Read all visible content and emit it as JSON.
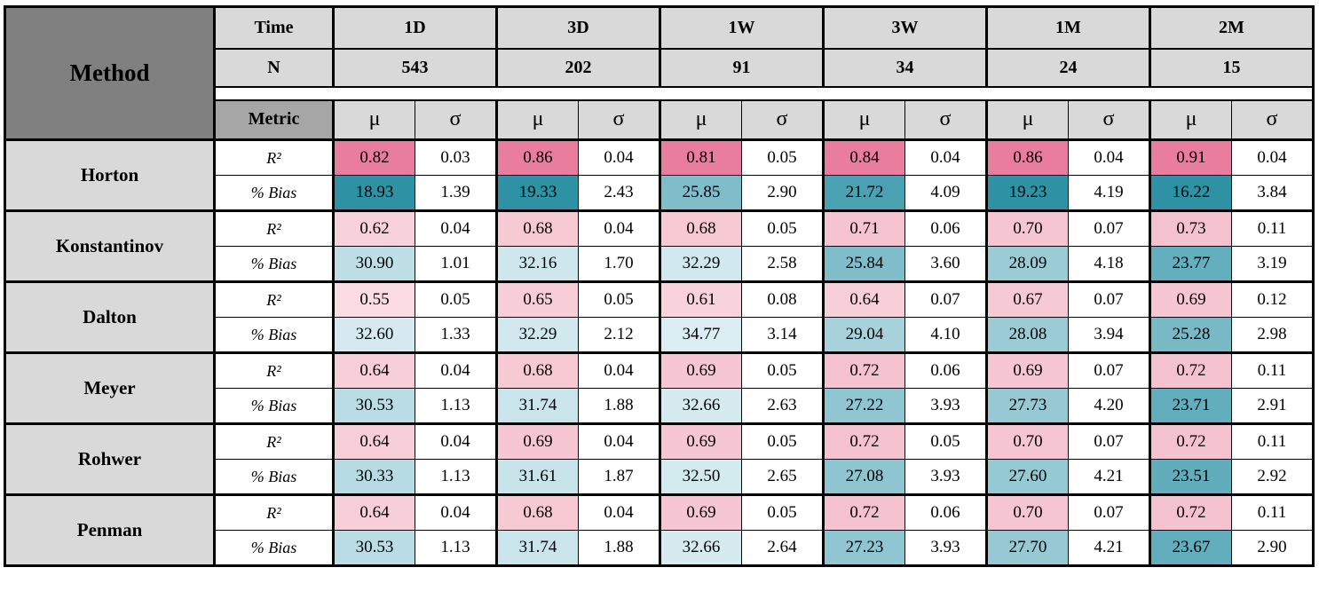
{
  "table": {
    "corner_label": "Method",
    "header": {
      "time_label": "Time",
      "n_label": "N",
      "metric_label": "Metric",
      "mu_label": "μ",
      "sigma_label": "σ",
      "periods": [
        {
          "time": "1D",
          "n": "543"
        },
        {
          "time": "3D",
          "n": "202"
        },
        {
          "time": "1W",
          "n": "91"
        },
        {
          "time": "3W",
          "n": "34"
        },
        {
          "time": "1M",
          "n": "24"
        },
        {
          "time": "2M",
          "n": "15"
        }
      ]
    },
    "metrics": [
      "R²",
      "% Bias"
    ],
    "methods": [
      {
        "name": "Horton",
        "r2": {
          "mu": [
            "0.82",
            "0.86",
            "0.81",
            "0.84",
            "0.86",
            "0.91"
          ],
          "sigma": [
            "0.03",
            "0.04",
            "0.05",
            "0.04",
            "0.04",
            "0.04"
          ]
        },
        "bias": {
          "mu": [
            "18.93",
            "19.33",
            "25.85",
            "21.72",
            "19.23",
            "16.22"
          ],
          "sigma": [
            "1.39",
            "2.43",
            "2.90",
            "4.09",
            "4.19",
            "3.84"
          ]
        }
      },
      {
        "name": "Konstantinov",
        "r2": {
          "mu": [
            "0.62",
            "0.68",
            "0.68",
            "0.71",
            "0.70",
            "0.73"
          ],
          "sigma": [
            "0.04",
            "0.04",
            "0.05",
            "0.06",
            "0.07",
            "0.11"
          ]
        },
        "bias": {
          "mu": [
            "30.90",
            "32.16",
            "32.29",
            "25.84",
            "28.09",
            "23.77"
          ],
          "sigma": [
            "1.01",
            "1.70",
            "2.58",
            "3.60",
            "4.18",
            "3.19"
          ]
        }
      },
      {
        "name": "Dalton",
        "r2": {
          "mu": [
            "0.55",
            "0.65",
            "0.61",
            "0.64",
            "0.67",
            "0.69"
          ],
          "sigma": [
            "0.05",
            "0.05",
            "0.08",
            "0.07",
            "0.07",
            "0.12"
          ]
        },
        "bias": {
          "mu": [
            "32.60",
            "32.29",
            "34.77",
            "29.04",
            "28.08",
            "25.28"
          ],
          "sigma": [
            "1.33",
            "2.12",
            "3.14",
            "4.10",
            "3.94",
            "2.98"
          ]
        }
      },
      {
        "name": "Meyer",
        "r2": {
          "mu": [
            "0.64",
            "0.68",
            "0.69",
            "0.72",
            "0.69",
            "0.72"
          ],
          "sigma": [
            "0.04",
            "0.04",
            "0.05",
            "0.06",
            "0.07",
            "0.11"
          ]
        },
        "bias": {
          "mu": [
            "30.53",
            "31.74",
            "32.66",
            "27.22",
            "27.73",
            "23.71"
          ],
          "sigma": [
            "1.13",
            "1.88",
            "2.63",
            "3.93",
            "4.20",
            "2.91"
          ]
        }
      },
      {
        "name": "Rohwer",
        "r2": {
          "mu": [
            "0.64",
            "0.69",
            "0.69",
            "0.72",
            "0.70",
            "0.72"
          ],
          "sigma": [
            "0.04",
            "0.04",
            "0.05",
            "0.05",
            "0.07",
            "0.11"
          ]
        },
        "bias": {
          "mu": [
            "30.33",
            "31.61",
            "32.50",
            "27.08",
            "27.60",
            "23.51"
          ],
          "sigma": [
            "1.13",
            "1.87",
            "2.65",
            "3.93",
            "4.21",
            "2.92"
          ]
        }
      },
      {
        "name": "Penman",
        "r2": {
          "mu": [
            "0.64",
            "0.68",
            "0.69",
            "0.72",
            "0.70",
            "0.72"
          ],
          "sigma": [
            "0.04",
            "0.04",
            "0.05",
            "0.06",
            "0.07",
            "0.11"
          ]
        },
        "bias": {
          "mu": [
            "30.53",
            "31.74",
            "32.66",
            "27.23",
            "27.70",
            "23.67"
          ],
          "sigma": [
            "1.13",
            "1.88",
            "2.64",
            "3.93",
            "4.21",
            "2.90"
          ]
        }
      }
    ]
  },
  "heat": {
    "bias": {
      "dark": "#2e92a4",
      "light": "#d9edf2",
      "value_dark": 19.5,
      "value_light": 33
    },
    "r2": {
      "dark": "#e87d9e",
      "dark_threshold": 0.8,
      "mid": "#f2b7c6",
      "light": "#fadce2",
      "value_light": 0.55,
      "value_mid": 0.8
    }
  },
  "colors": {
    "method_header_bg": "#808080",
    "metric_label_bg": "#a6a6a6",
    "header_gray_bg": "#d9d9d9",
    "page_bg": "#ffffff",
    "border": "#000000"
  }
}
